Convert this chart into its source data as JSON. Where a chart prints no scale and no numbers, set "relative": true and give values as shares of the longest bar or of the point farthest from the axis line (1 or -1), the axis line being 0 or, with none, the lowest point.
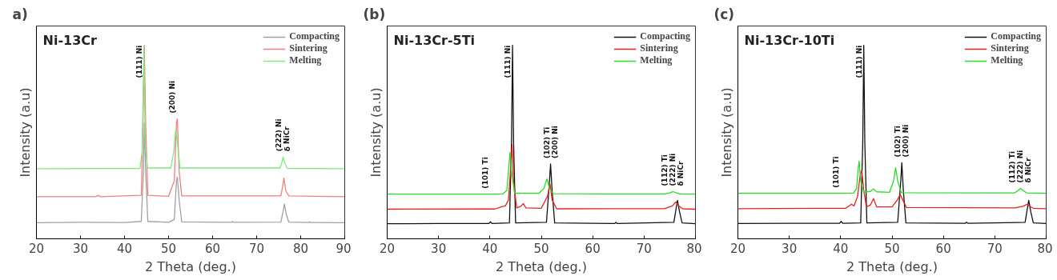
{
  "chart_data": [
    {
      "type": "line",
      "title": "a)",
      "relative": true,
      "xlabel": "2 Theta (deg.)",
      "ylabel": "Intensity (a.u)",
      "xlim": [
        20,
        90
      ],
      "xticks": [
        20,
        30,
        40,
        50,
        60,
        70,
        80,
        90
      ],
      "legend": "top right",
      "grid": false,
      "annotations": [
        "Ni-13Cr",
        {
          "text": "(111) Ni",
          "x": 44.5,
          "y": 1.0
        },
        {
          "text": "(200) Ni",
          "x": 52.0,
          "y": 0.62
        },
        {
          "text": "(222) Ni\nδ NiCr",
          "x": 76.0,
          "y": 0.423
        }
      ],
      "series": [
        {
          "name": "Compacting",
          "color": "#a0a0a0",
          "x": [
            20,
            30,
            40,
            43.8,
            44.3,
            44.5,
            44.8,
            45.3,
            50,
            51.3,
            51.8,
            52.0,
            52.4,
            53,
            64.3,
            64.5,
            64.8,
            75.5,
            76.0,
            76.3,
            76.7,
            77.3,
            81.8,
            82,
            82.3,
            90
          ],
          "values": [
            0.083,
            0.085,
            0.084,
            0.09,
            0.35,
            0.6,
            0.35,
            0.09,
            0.085,
            0.1,
            0.3,
            0.32,
            0.2,
            0.087,
            0.085,
            0.09,
            0.085,
            0.086,
            0.14,
            0.179,
            0.13,
            0.086,
            0.084,
            0.088,
            0.084,
            0.083
          ]
        },
        {
          "name": "Sintering",
          "color": "#f08080",
          "x": [
            20,
            33.5,
            34,
            34.5,
            43.8,
            44.2,
            44.5,
            44.8,
            45.3,
            50,
            51.3,
            51.8,
            52.0,
            52.4,
            53,
            75.5,
            75.9,
            76.2,
            76.6,
            77.3,
            90
          ],
          "values": [
            0.218,
            0.218,
            0.225,
            0.218,
            0.225,
            0.6,
            1.0,
            0.6,
            0.225,
            0.22,
            0.3,
            0.6,
            0.62,
            0.35,
            0.222,
            0.222,
            0.27,
            0.314,
            0.25,
            0.222,
            0.218
          ]
        },
        {
          "name": "Melting",
          "color": "#80e880",
          "x": [
            20,
            43.5,
            44.0,
            44.4,
            44.7,
            45.2,
            50.5,
            51.2,
            51.6,
            52.0,
            52.6,
            75.3,
            75.7,
            76.0,
            76.4,
            77,
            90
          ],
          "values": [
            0.362,
            0.364,
            0.45,
            0.99,
            0.5,
            0.366,
            0.366,
            0.45,
            0.564,
            0.5,
            0.366,
            0.366,
            0.39,
            0.423,
            0.39,
            0.364,
            0.362
          ]
        }
      ]
    },
    {
      "type": "line",
      "title": "(b)",
      "relative": true,
      "xlabel": "2 Theta (deg.)",
      "ylabel": "Intensity (a.u)",
      "xlim": [
        20,
        80
      ],
      "xticks": [
        20,
        30,
        40,
        50,
        60,
        70,
        80
      ],
      "legend": "top right",
      "grid": false,
      "annotations": [
        "Ni-13Cr-5Ti",
        {
          "text": "(111) Ni",
          "x": 44.4,
          "y": 1.0
        },
        {
          "text": "(101) Ti",
          "x": 40.1,
          "y": 0.231
        },
        {
          "text": "(102) Ti\n(200) Ni",
          "x": 51.8,
          "y": 0.387
        },
        {
          "text": "(112) Ti\n(222) Ni\nδ NiCr",
          "x": 75.6,
          "y": 0.244
        }
      ],
      "series": [
        {
          "name": "Compacting",
          "color": "#111111",
          "x": [
            20,
            30,
            39.8,
            40.1,
            40.4,
            43.8,
            44.2,
            44.4,
            44.6,
            45.0,
            51.0,
            51.6,
            51.8,
            52.1,
            52.6,
            64.3,
            64.5,
            64.8,
            75.8,
            76.2,
            76.5,
            76.9,
            77.4,
            80
          ],
          "values": [
            0.078,
            0.079,
            0.079,
            0.088,
            0.079,
            0.082,
            0.5,
            1.0,
            0.5,
            0.082,
            0.085,
            0.3,
            0.387,
            0.25,
            0.082,
            0.079,
            0.085,
            0.079,
            0.085,
            0.15,
            0.199,
            0.14,
            0.082,
            0.078
          ]
        },
        {
          "name": "Sintering",
          "color": "#e8201e",
          "x": [
            20,
            41,
            42.3,
            43,
            43.6,
            44.0,
            44.3,
            44.6,
            45.2,
            46.0,
            46.5,
            47.0,
            50,
            51.2,
            51.7,
            52.1,
            53,
            74,
            75.5,
            76.2,
            76.8,
            77.5,
            80
          ],
          "values": [
            0.153,
            0.154,
            0.166,
            0.17,
            0.2,
            0.35,
            0.487,
            0.3,
            0.16,
            0.168,
            0.182,
            0.16,
            0.158,
            0.22,
            0.283,
            0.2,
            0.155,
            0.156,
            0.17,
            0.19,
            0.17,
            0.155,
            0.153
          ]
        },
        {
          "name": "Melting",
          "color": "#22dd22",
          "x": [
            20,
            40.1,
            42.5,
            43.3,
            43.7,
            43.9,
            44.2,
            44.8,
            49.5,
            50.5,
            51.1,
            51.6,
            52.3,
            74,
            75.0,
            75.6,
            76.3,
            77,
            80
          ],
          "values": [
            0.231,
            0.231,
            0.232,
            0.25,
            0.38,
            0.445,
            0.35,
            0.235,
            0.235,
            0.26,
            0.309,
            0.26,
            0.233,
            0.232,
            0.237,
            0.244,
            0.237,
            0.232,
            0.231
          ]
        }
      ]
    },
    {
      "type": "line",
      "title": "(c)",
      "relative": true,
      "xlabel": "2 Theta (deg.)",
      "ylabel": "Intensity (a.u)",
      "xlim": [
        20,
        80
      ],
      "xticks": [
        20,
        30,
        40,
        50,
        60,
        70,
        80
      ],
      "legend": "top right",
      "grid": false,
      "annotations": [
        "Ni-13Cr-10Ti",
        {
          "text": "(111) Ni",
          "x": 44.5,
          "y": 1.0
        },
        {
          "text": "(101) Ti",
          "x": 40.1,
          "y": 0.235
        },
        {
          "text": "(102) Ti\n(200) Ni",
          "x": 51.9,
          "y": 0.393
        },
        {
          "text": "(112) Ti\n(222) Ni\nδ NiCr",
          "x": 75.0,
          "y": 0.261
        }
      ],
      "series": [
        {
          "name": "Compacting",
          "color": "#111111",
          "x": [
            20,
            30,
            39.8,
            40.1,
            40.4,
            43.9,
            44.3,
            44.5,
            44.7,
            45.1,
            51.1,
            51.7,
            51.9,
            52.2,
            52.7,
            64.3,
            64.5,
            64.8,
            75.9,
            76.3,
            76.6,
            77.0,
            77.5,
            80
          ],
          "values": [
            0.079,
            0.08,
            0.08,
            0.09,
            0.08,
            0.082,
            0.5,
            1.0,
            0.5,
            0.082,
            0.085,
            0.3,
            0.393,
            0.25,
            0.082,
            0.08,
            0.086,
            0.08,
            0.085,
            0.15,
            0.199,
            0.14,
            0.082,
            0.079
          ]
        },
        {
          "name": "Sintering",
          "color": "#e8201e",
          "x": [
            20,
            41,
            42.1,
            42.6,
            43.3,
            43.8,
            44.1,
            44.5,
            45.0,
            45.8,
            46.4,
            47.0,
            50,
            51.0,
            51.6,
            52.1,
            52.8,
            74,
            75.5,
            76.2,
            76.8,
            77.5,
            80
          ],
          "values": [
            0.156,
            0.158,
            0.179,
            0.17,
            0.22,
            0.33,
            0.354,
            0.25,
            0.165,
            0.175,
            0.208,
            0.165,
            0.165,
            0.2,
            0.228,
            0.2,
            0.162,
            0.16,
            0.168,
            0.178,
            0.168,
            0.158,
            0.156
          ]
        },
        {
          "name": "Melting",
          "color": "#22dd22",
          "x": [
            20,
            40.1,
            42.5,
            43.1,
            43.4,
            43.6,
            43.9,
            44.5,
            45.8,
            46.4,
            47.0,
            49.5,
            50.3,
            50.7,
            51.1,
            51.8,
            73.8,
            74.6,
            75.0,
            75.5,
            76.2,
            80
          ],
          "values": [
            0.235,
            0.235,
            0.236,
            0.26,
            0.36,
            0.402,
            0.3,
            0.24,
            0.245,
            0.258,
            0.243,
            0.24,
            0.3,
            0.367,
            0.3,
            0.238,
            0.237,
            0.25,
            0.261,
            0.25,
            0.237,
            0.235
          ]
        }
      ]
    }
  ]
}
